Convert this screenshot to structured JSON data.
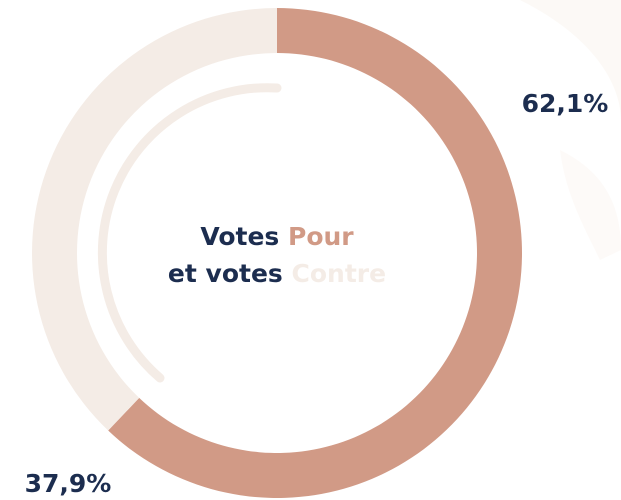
{
  "chart_data": {
    "type": "donut",
    "title_lines": [
      "Votes",
      "et votes"
    ],
    "categories": [
      "Pour",
      "Contre"
    ],
    "values": [
      62.1,
      37.9
    ],
    "value_labels": [
      "62,1%",
      "37,9%"
    ],
    "colors": [
      "#d19a86",
      "#f4ece6"
    ],
    "text_color": "#1c2d4f"
  }
}
